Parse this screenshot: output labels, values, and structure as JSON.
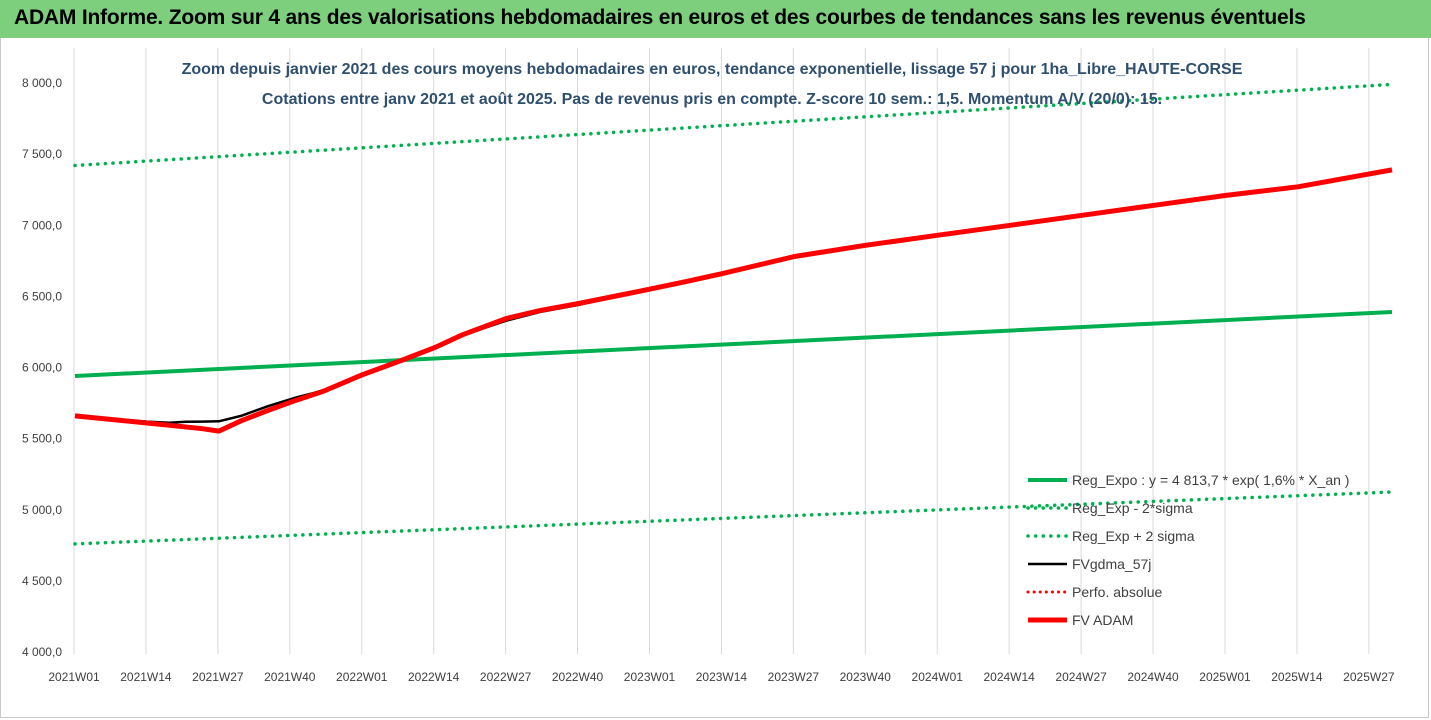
{
  "header": {
    "title": "ADAM Informe. Zoom sur 4 ans des valorisations hebdomadaires en euros et des courbes de tendances sans les revenus éventuels"
  },
  "colors": {
    "header_bg": "#7dcf7d",
    "green": "#00b050",
    "black": "#000000",
    "red": "#ff0000",
    "grid": "#d9d9d9",
    "title": "#2f4f6f"
  },
  "chart_data": {
    "type": "line",
    "title": "Zoom depuis janvier 2021 des cours moyens hebdomadaires en euros, tendance exponentielle, lissage 57 j pour 1ha_Libre_HAUTE-CORSE",
    "subtitle": "Cotations entre janv 2021 et août 2025. Pas de revenus pris en compte. Z-score 10 sem.: 1,5. Momentum A/V (20/0): 15.",
    "xlabel": "",
    "ylabel": "",
    "ylim": [
      4000,
      8000
    ],
    "yticks": [
      "8 000,0",
      "7 500,0",
      "7 000,0",
      "6 500,0",
      "6 000,0",
      "5 500,0",
      "5 000,0",
      "4 500,0",
      "4 000,0"
    ],
    "ytick_values": [
      8000,
      7500,
      7000,
      6500,
      6000,
      5500,
      5000,
      4500,
      4000
    ],
    "x_tick_labels": [
      "2021W01",
      "2021W14",
      "2021W27",
      "2021W40",
      "2022W01",
      "2022W14",
      "2022W27",
      "2022W40",
      "2023W01",
      "2023W14",
      "2023W27",
      "2023W40",
      "2024W01",
      "2024W14",
      "2024W27",
      "2024W40",
      "2025W01",
      "2025W14",
      "2025W27"
    ],
    "grid": "vertical",
    "legend_position": "bottom-right",
    "n_weeks": 239,
    "series": [
      {
        "name": "Reg_Expo : y = 4 813,7 * exp( 1,6% *  X_an )",
        "style": "solid-green",
        "x": [
          0,
          238
        ],
        "y": [
          5940,
          6390
        ]
      },
      {
        "name": "Reg_Exp - 2*sigma",
        "style": "dotted-green",
        "x": [
          0,
          238
        ],
        "y": [
          4760,
          5125
        ]
      },
      {
        "name": "Reg_Exp + 2 sigma",
        "style": "dotted-green",
        "x": [
          0,
          238
        ],
        "y": [
          7420,
          7990
        ]
      },
      {
        "name": "FVgdma_57j",
        "style": "solid-black",
        "x": [
          0,
          13,
          17,
          20,
          23,
          26,
          30,
          35,
          40,
          45,
          52,
          59,
          65,
          70,
          78,
          84,
          91,
          100,
          110,
          117,
          130,
          143,
          156,
          169,
          182,
          195,
          208,
          221,
          238
        ],
        "y": [
          5660,
          5620,
          5612,
          5618,
          5620,
          5622,
          5660,
          5730,
          5790,
          5840,
          5950,
          6050,
          6140,
          6225,
          6330,
          6390,
          6440,
          6520,
          6600,
          6660,
          6780,
          6860,
          6930,
          7000,
          7070,
          7140,
          7210,
          7270,
          7380
        ]
      },
      {
        "name": "Perfo. absolue",
        "style": "dotted-red",
        "x": [
          0,
          238
        ],
        "y": [
          null,
          null
        ]
      },
      {
        "name": "FV ADAM",
        "style": "solid-red",
        "x": [
          0,
          13,
          18,
          23,
          26,
          30,
          35,
          40,
          45,
          52,
          59,
          65,
          70,
          78,
          84,
          91,
          100,
          110,
          117,
          130,
          143,
          156,
          169,
          182,
          195,
          208,
          221,
          238
        ],
        "y": [
          5660,
          5610,
          5590,
          5570,
          5553,
          5625,
          5700,
          5770,
          5835,
          5950,
          6050,
          6140,
          6230,
          6345,
          6400,
          6450,
          6520,
          6600,
          6660,
          6780,
          6860,
          6930,
          7000,
          7070,
          7140,
          7210,
          7270,
          7390
        ]
      }
    ]
  }
}
